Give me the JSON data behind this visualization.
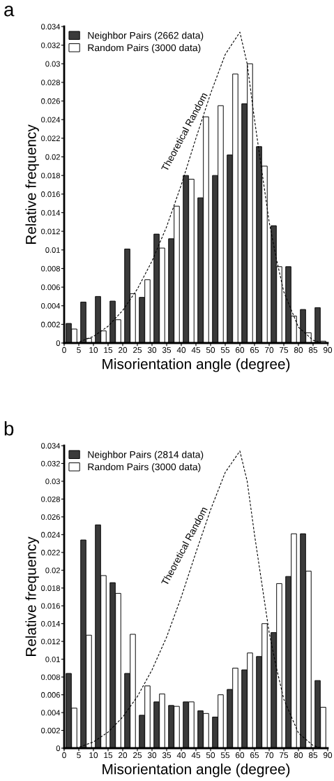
{
  "chart_data": [
    {
      "type": "bar",
      "annotations": [
        "a"
      ],
      "xlabel": "Misorientation angle (degree)",
      "ylabel": "Relative frequency",
      "x": [
        2.5,
        7.5,
        12.5,
        17.5,
        22.5,
        27.5,
        32.5,
        37.5,
        42.5,
        47.5,
        52.5,
        57.5,
        62.5,
        67.5,
        72.5,
        77.5,
        82.5,
        87.5
      ],
      "series": [
        {
          "name": "Neighbor Pairs (2662 data)",
          "color": "#3a3a3a",
          "values": [
            0.0021,
            0.0044,
            0.005,
            0.0045,
            0.0101,
            0.0049,
            0.0117,
            0.0112,
            0.018,
            0.0156,
            0.018,
            0.0202,
            0.0257,
            0.0211,
            0.0126,
            0.0082,
            0.0036,
            0.0038
          ]
        },
        {
          "name": "Random Pairs (3000 data)",
          "color": "#ffffff",
          "values": [
            0.0015,
            0.0005,
            0.0013,
            0.0025,
            0.0053,
            0.0068,
            0.0102,
            0.0147,
            0.0176,
            0.0243,
            0.0255,
            0.0289,
            0.03,
            0.019,
            0.0082,
            0.0029,
            0.0011,
            0.0002
          ]
        },
        {
          "name": "Theoretical Random",
          "type": "line",
          "line_style": "dashed",
          "color": "#000000",
          "x": [
            4,
            5,
            10,
            15,
            20,
            25,
            30,
            35,
            40,
            45,
            50,
            55,
            60,
            62.5,
            65,
            67.5,
            70,
            72.5,
            75,
            80,
            85,
            88
          ],
          "values": [
            0,
            0.0001,
            0.0007,
            0.0018,
            0.0035,
            0.0058,
            0.0088,
            0.0125,
            0.017,
            0.022,
            0.0268,
            0.031,
            0.0334,
            0.03,
            0.024,
            0.0185,
            0.013,
            0.009,
            0.0055,
            0.0017,
            0.0003,
            0
          ]
        }
      ],
      "xlim": [
        0,
        90
      ],
      "xticks": [
        0,
        5,
        10,
        15,
        20,
        25,
        30,
        35,
        40,
        45,
        50,
        55,
        60,
        65,
        70,
        75,
        80,
        85,
        90
      ],
      "ylim": [
        0,
        0.034
      ],
      "yticks": [
        0,
        0.002,
        0.004,
        0.006,
        0.008,
        0.01,
        0.012,
        0.014,
        0.016,
        0.018,
        0.02,
        0.022,
        0.024,
        0.026,
        0.028,
        0.03,
        0.032,
        0.034
      ],
      "legend": "top left",
      "grid": false
    },
    {
      "type": "bar",
      "annotations": [
        "b"
      ],
      "xlabel": "Misorientation angle (degree)",
      "ylabel": "Relative frequency",
      "x": [
        2.5,
        7.5,
        12.5,
        17.5,
        22.5,
        27.5,
        32.5,
        37.5,
        42.5,
        47.5,
        52.5,
        57.5,
        62.5,
        67.5,
        72.5,
        77.5,
        82.5,
        87.5
      ],
      "series": [
        {
          "name": "Neighbor Pairs (2814 data)",
          "color": "#3a3a3a",
          "values": [
            0.0084,
            0.0234,
            0.0251,
            0.0186,
            0.0084,
            0.0037,
            0.0052,
            0.0048,
            0.0052,
            0.0042,
            0.0035,
            0.0066,
            0.0088,
            0.0103,
            0.013,
            0.0193,
            0.0241,
            0.0076
          ]
        },
        {
          "name": "Random Pairs (3000 data)",
          "color": "#ffffff",
          "values": [
            0.0045,
            0.0127,
            0.0194,
            0.0174,
            0.0128,
            0.007,
            0.0061,
            0.0047,
            0.0052,
            0.0039,
            0.006,
            0.009,
            0.0107,
            0.014,
            0.0185,
            0.0241,
            0.0199,
            0.0046
          ]
        },
        {
          "name": "Theoretical Random",
          "type": "line",
          "line_style": "dashed",
          "color": "#000000",
          "x": [
            4,
            5,
            10,
            15,
            20,
            25,
            30,
            35,
            40,
            45,
            50,
            55,
            60,
            62.5,
            65,
            67.5,
            70,
            72.5,
            75,
            80,
            85,
            88
          ],
          "values": [
            0,
            0.0001,
            0.0007,
            0.0018,
            0.0035,
            0.0058,
            0.0088,
            0.0125,
            0.017,
            0.022,
            0.0268,
            0.031,
            0.0334,
            0.03,
            0.024,
            0.0185,
            0.013,
            0.009,
            0.0055,
            0.0017,
            0.0003,
            0
          ]
        }
      ],
      "xlim": [
        0,
        90
      ],
      "xticks": [
        0,
        5,
        10,
        15,
        20,
        25,
        30,
        35,
        40,
        45,
        50,
        55,
        60,
        65,
        70,
        75,
        80,
        85,
        90
      ],
      "ylim": [
        0,
        0.034
      ],
      "yticks": [
        0,
        0.002,
        0.004,
        0.006,
        0.008,
        0.01,
        0.012,
        0.014,
        0.016,
        0.018,
        0.02,
        0.022,
        0.024,
        0.026,
        0.028,
        0.03,
        0.032,
        0.034
      ],
      "legend": "top left",
      "grid": false
    }
  ]
}
